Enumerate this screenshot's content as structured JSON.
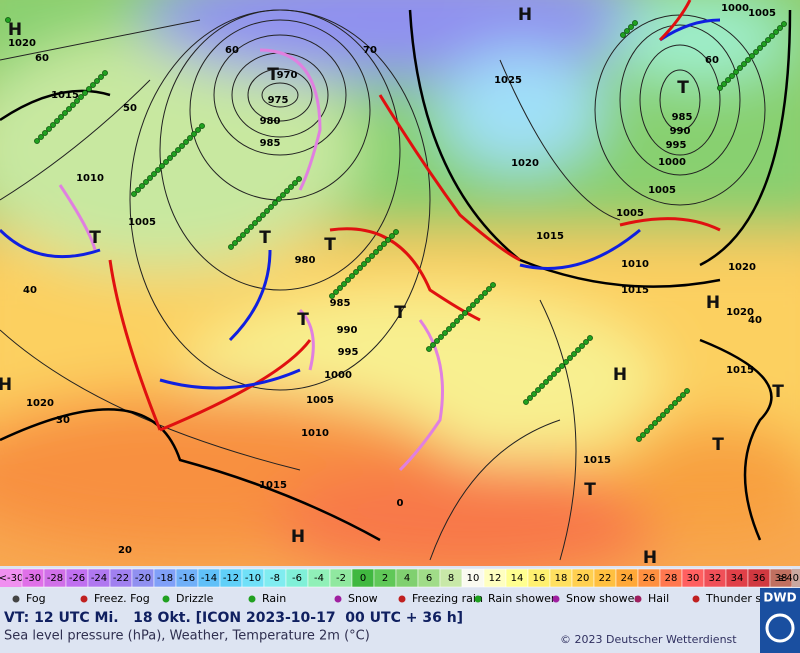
{
  "map": {
    "pressure_systems": [
      "H",
      "H",
      "T",
      "T",
      "T",
      "T",
      "T",
      "T",
      "T",
      "H",
      "H",
      "T",
      "T",
      "T",
      "H",
      "H",
      "H"
    ],
    "isobar_labels": [
      1020,
      60,
      1015,
      50,
      1010,
      1005,
      40,
      1020,
      30,
      20,
      970,
      975,
      980,
      985,
      980,
      985,
      990,
      995,
      1000,
      1005,
      1010,
      1015,
      1025,
      1020,
      1015,
      1010,
      1015,
      1020,
      1020,
      1000,
      1005,
      60,
      985,
      990,
      995,
      1000,
      1005,
      1005,
      1015,
      1015,
      0,
      40,
      70,
      60
    ]
  },
  "scale": {
    "low": "<-30",
    "values": [
      -30,
      -28,
      -26,
      -24,
      -22,
      -20,
      -18,
      -16,
      -14,
      -12,
      -10,
      -8,
      -6,
      -4,
      -2,
      0,
      2,
      4,
      6,
      8,
      10,
      12,
      14,
      16,
      18,
      20,
      22,
      24,
      26,
      28,
      30,
      32,
      34,
      36,
      38
    ],
    "high": "≥40 °C",
    "colors": [
      "#e070e8",
      "#d070e8",
      "#c070f0",
      "#b078f0",
      "#a080f0",
      "#9090f0",
      "#80a0f8",
      "#70b0f8",
      "#60c0f8",
      "#60d0f8",
      "#70e0f8",
      "#80ecf0",
      "#80f0d8",
      "#90f0b8",
      "#90e8a0",
      "#40b840",
      "#60c858",
      "#80d070",
      "#a0dc88",
      "#c8e8a8",
      "#fafaf0",
      "#ffffc0",
      "#ffff90",
      "#fff070",
      "#ffe060",
      "#ffd050",
      "#ffc040",
      "#ffa838",
      "#ff9040",
      "#ff7850",
      "#ff6060",
      "#f05058",
      "#e04048",
      "#d03840",
      "#c07060"
    ]
  },
  "legend": [
    "Fog",
    "Freez. Fog",
    "Drizzle",
    "Rain",
    "Snow",
    "Freezing rain",
    "Rain shower",
    "Snow shower",
    "Hail",
    "Thunder storm"
  ],
  "footer": {
    "valid_time": "VT: 12 UTC Mi.   18 Okt. [ICON 2023-10-17  00 UTC + 36 h]",
    "description": "Sea level pressure (hPa), Weather, Temperature 2m (°C)",
    "copyright": "© 2023 Deutscher Wetterdienst",
    "logo": "DWD"
  }
}
